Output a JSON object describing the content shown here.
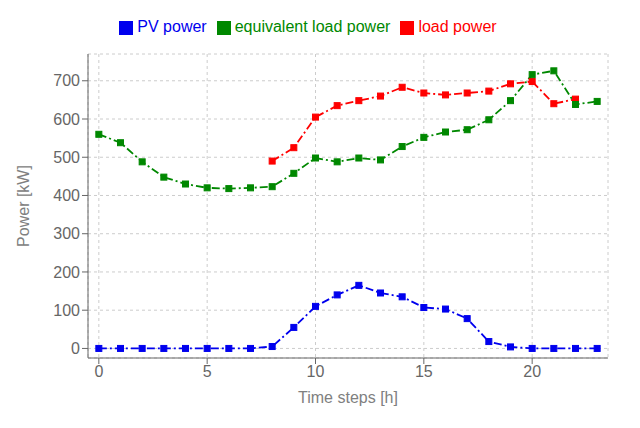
{
  "chart_data": {
    "type": "line",
    "xlabel": "Time steps [h]",
    "ylabel": "Power [kW]",
    "x": [
      0,
      1,
      2,
      3,
      4,
      5,
      6,
      7,
      8,
      9,
      10,
      11,
      12,
      13,
      14,
      15,
      16,
      17,
      18,
      19,
      20,
      21,
      22,
      23
    ],
    "series": [
      {
        "name": "load power",
        "color": "#ff0000",
        "marker": "square",
        "line_style": "dashdot",
        "values": [
          null,
          null,
          null,
          null,
          null,
          null,
          null,
          null,
          490,
          525,
          605,
          635,
          648,
          660,
          683,
          668,
          663,
          668,
          673,
          692,
          698,
          640,
          652,
          null
        ]
      },
      {
        "name": "PV power",
        "color": "#0000ee",
        "marker": "square",
        "line_style": "dashdot",
        "values": [
          0,
          0,
          0,
          0,
          0,
          0,
          0,
          0,
          5,
          55,
          110,
          140,
          165,
          145,
          135,
          107,
          103,
          78,
          18,
          4,
          0,
          0,
          0,
          0
        ]
      },
      {
        "name": "equivalent load power",
        "color": "#008800",
        "marker": "square",
        "line_style": "dashdot",
        "values": [
          560,
          538,
          488,
          448,
          430,
          420,
          418,
          420,
          423,
          458,
          498,
          488,
          498,
          493,
          528,
          552,
          566,
          572,
          598,
          648,
          716,
          726,
          638,
          646
        ]
      }
    ],
    "xlim": [
      -0.5,
      23.5
    ],
    "ylim": [
      -25,
      770
    ],
    "xticks": [
      0,
      5,
      10,
      15,
      20
    ],
    "yticks": [
      0,
      100,
      200,
      300,
      400,
      500,
      600,
      700
    ],
    "grid": true,
    "legend": "top"
  }
}
